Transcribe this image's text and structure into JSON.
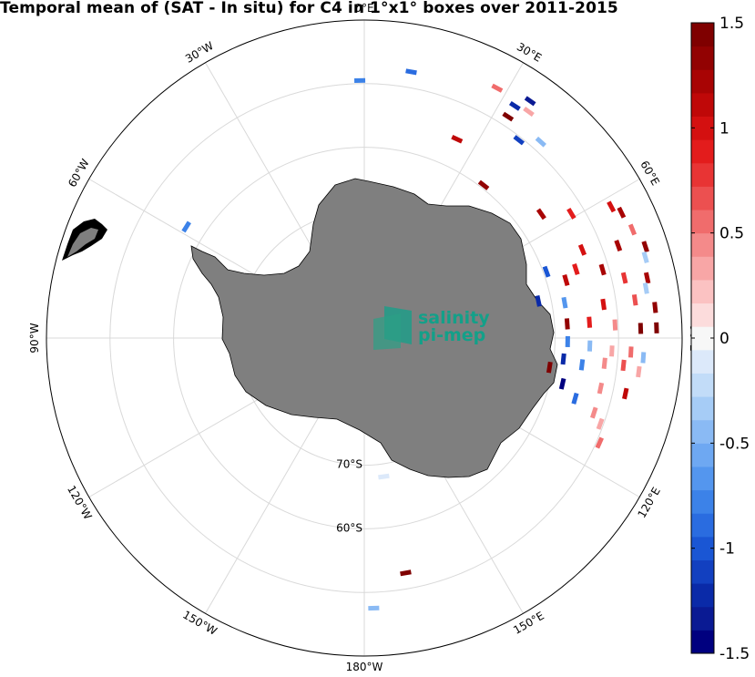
{
  "title": "Temporal mean of (SAT - In situ) for C4 in 1°x1° boxes over 2011-2015",
  "logo": {
    "line1": "salinity",
    "line2": "pi-mep"
  },
  "colors": {
    "land": "#7f7f7f",
    "graticule": "#d9d9d9",
    "logo": "#13a089",
    "colormap": [
      "#00007f",
      "#0a1a93",
      "#0a2aa8",
      "#1240c0",
      "#1a56d4",
      "#2a6ce0",
      "#3c82e8",
      "#5496ee",
      "#6ea8f2",
      "#8abaf4",
      "#a6ccf6",
      "#c2dcf8",
      "#dce9fa",
      "#f7f7f7",
      "#fcdcdc",
      "#fbc2c2",
      "#f8a6a6",
      "#f48a8a",
      "#f06c6c",
      "#ec5050",
      "#e83434",
      "#e31c1c",
      "#d41010",
      "#bf0808",
      "#a80404",
      "#920202",
      "#7f0000"
    ]
  },
  "graticule_labels": {
    "lon": [
      "0°E",
      "30°E",
      "60°E",
      "90°E",
      "120°E",
      "150°E",
      "180°W",
      "150°W",
      "120°W",
      "90°W",
      "60°W",
      "30°W"
    ],
    "lat": [
      "70°S",
      "60°S"
    ]
  },
  "chart_data": {
    "type": "heatmap",
    "title": "Temporal mean of (SAT - In situ) for C4 in 1°x1° boxes over 2011-2015",
    "projection": "south polar stereographic",
    "variable": "SAT - In situ",
    "colorbar": {
      "range": [
        -1.5,
        1.5
      ],
      "ticks": [
        -1.5,
        -1,
        -0.5,
        0,
        0.5,
        1,
        1.5
      ],
      "tick_labels": [
        "-1.5",
        "-1",
        "-0.5",
        "0",
        "0.5",
        "1",
        "1.5"
      ]
    },
    "points": [
      {
        "lon": 10,
        "lat": -47.5,
        "value": -0.9
      },
      {
        "lon": 28,
        "lat": -45.5,
        "value": 0.6
      },
      {
        "lon": 33,
        "lat": -46.5,
        "value": -1.2
      },
      {
        "lon": 35,
        "lat": -44.5,
        "value": -1.3
      },
      {
        "lon": 33,
        "lat": -48.5,
        "value": 1.4
      },
      {
        "lon": 36,
        "lat": -46.0,
        "value": 0.3
      },
      {
        "lon": 25,
        "lat": -55.5,
        "value": 1.1
      },
      {
        "lon": 38,
        "lat": -50.5,
        "value": -1.1
      },
      {
        "lon": 42,
        "lat": -48.5,
        "value": -0.4
      },
      {
        "lon": 38,
        "lat": -59.5,
        "value": 1.3
      },
      {
        "lon": 55,
        "lat": -56.0,
        "value": 1.2
      },
      {
        "lon": 59,
        "lat": -52.0,
        "value": 0.9
      },
      {
        "lon": 62,
        "lat": -46.0,
        "value": 1.0
      },
      {
        "lon": 64,
        "lat": -45.0,
        "value": 1.2
      },
      {
        "lon": 68,
        "lat": -44.5,
        "value": 0.5
      },
      {
        "lon": 72,
        "lat": -43.5,
        "value": 1.3
      },
      {
        "lon": 70,
        "lat": -47.5,
        "value": 1.2
      },
      {
        "lon": 74,
        "lat": -44.0,
        "value": -0.3
      },
      {
        "lon": 68,
        "lat": -53.0,
        "value": 1.0
      },
      {
        "lon": 72,
        "lat": -55.0,
        "value": 0.9
      },
      {
        "lon": 70,
        "lat": -59.5,
        "value": -1.0
      },
      {
        "lon": 74,
        "lat": -57.0,
        "value": 1.1
      },
      {
        "lon": 74,
        "lat": -51.0,
        "value": 1.2
      },
      {
        "lon": 77,
        "lat": -48.0,
        "value": 0.8
      },
      {
        "lon": 78,
        "lat": -44.5,
        "value": 1.2
      },
      {
        "lon": 80,
        "lat": -45.0,
        "value": -0.3
      },
      {
        "lon": 78,
        "lat": -62.0,
        "value": -1.2
      },
      {
        "lon": 80,
        "lat": -58.0,
        "value": -0.7
      },
      {
        "lon": 82,
        "lat": -52.0,
        "value": 1.0
      },
      {
        "lon": 82,
        "lat": -47.0,
        "value": 0.7
      },
      {
        "lon": 84,
        "lat": -44.0,
        "value": 1.3
      },
      {
        "lon": 86,
        "lat": -58.0,
        "value": 1.3
      },
      {
        "lon": 86,
        "lat": -54.5,
        "value": 0.9
      },
      {
        "lon": 87,
        "lat": -50.5,
        "value": 0.4
      },
      {
        "lon": 88,
        "lat": -46.5,
        "value": 1.5
      },
      {
        "lon": 88,
        "lat": -44.0,
        "value": 1.4
      },
      {
        "lon": 91,
        "lat": -58.0,
        "value": -0.8
      },
      {
        "lon": 92,
        "lat": -54.5,
        "value": -0.4
      },
      {
        "lon": 93,
        "lat": -51.0,
        "value": 0.3
      },
      {
        "lon": 93,
        "lat": -48.0,
        "value": 0.6
      },
      {
        "lon": 94,
        "lat": -46.0,
        "value": -0.4
      },
      {
        "lon": 96,
        "lat": -58.5,
        "value": -1.2
      },
      {
        "lon": 97,
        "lat": -55.5,
        "value": -0.8
      },
      {
        "lon": 96,
        "lat": -52.0,
        "value": 0.4
      },
      {
        "lon": 96,
        "lat": -49.0,
        "value": 0.7
      },
      {
        "lon": 97,
        "lat": -46.5,
        "value": 0.3
      },
      {
        "lon": 99,
        "lat": -60.5,
        "value": 1.4
      },
      {
        "lon": 103,
        "lat": -58.0,
        "value": -1.4
      },
      {
        "lon": 106,
        "lat": -55.5,
        "value": -0.9
      },
      {
        "lon": 102,
        "lat": -52.0,
        "value": 0.4
      },
      {
        "lon": 102,
        "lat": -48.0,
        "value": 1.1
      },
      {
        "lon": 108,
        "lat": -52.0,
        "value": 0.4
      },
      {
        "lon": 110,
        "lat": -50.5,
        "value": 0.3
      },
      {
        "lon": 114,
        "lat": -49.5,
        "value": 0.5
      },
      {
        "lon": 170,
        "lat": -52.5,
        "value": 1.4
      },
      {
        "lon": 178,
        "lat": -47.5,
        "value": -0.5
      },
      {
        "lon": 172,
        "lat": -68.0,
        "value": -0.1
      },
      {
        "lon": -58,
        "lat": -57.0,
        "value": -0.8
      },
      {
        "lon": -1,
        "lat": -49.5,
        "value": -0.8
      }
    ]
  }
}
